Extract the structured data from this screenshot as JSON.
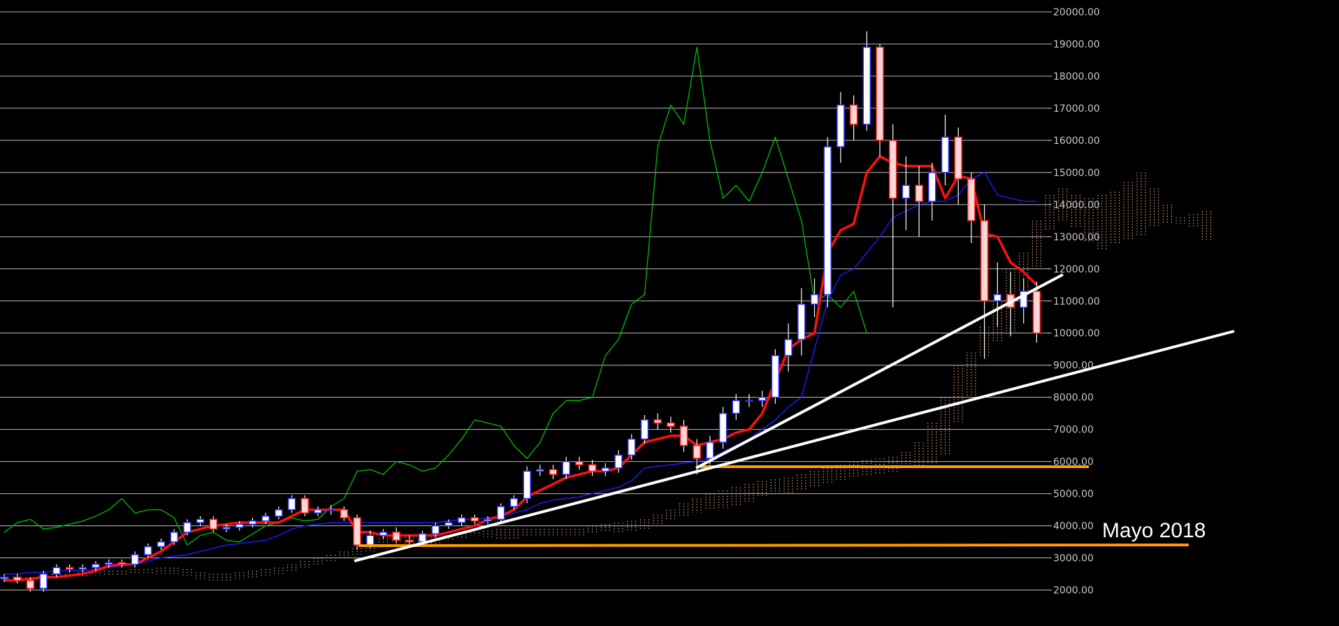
{
  "chart_data": {
    "type": "candlestick",
    "annotation": "Mayo 2018",
    "ylim": [
      880,
      20370
    ],
    "yticks": [
      {
        "value": 2000,
        "label": "2000.00"
      },
      {
        "value": 3000,
        "label": "3000.00"
      },
      {
        "value": 4000,
        "label": "4000.00"
      },
      {
        "value": 5000,
        "label": "5000.00"
      },
      {
        "value": 6000,
        "label": "6000.00"
      },
      {
        "value": 7000,
        "label": "7000.00"
      },
      {
        "value": 8000,
        "label": "8000.00"
      },
      {
        "value": 9000,
        "label": "9000.00"
      },
      {
        "value": 10000,
        "label": "10000.00"
      },
      {
        "value": 11000,
        "label": "11000.00"
      },
      {
        "value": 12000,
        "label": "12000.00"
      },
      {
        "value": 13000,
        "label": "13000.00"
      },
      {
        "value": 14000,
        "label": "14000.00"
      },
      {
        "value": 15000,
        "label": "15000.00"
      },
      {
        "value": 16000,
        "label": "16000.00"
      },
      {
        "value": 17000,
        "label": "17000.00"
      },
      {
        "value": 18000,
        "label": "18000.00"
      },
      {
        "value": 19000,
        "label": "19000.00"
      },
      {
        "value": 20000,
        "label": "20000.00"
      }
    ],
    "grid": true,
    "up_color": "#3030ff",
    "down_color": "#ff2020",
    "open": [
      2350,
      2400,
      2300,
      2050,
      2500,
      2700,
      2650,
      2700,
      2800,
      2850,
      2800,
      3100,
      3350,
      3500,
      3800,
      4100,
      4200,
      3900,
      3950,
      4050,
      4150,
      4300,
      4500,
      4850,
      4400,
      4500,
      4500,
      4250,
      3400,
      3700,
      3800,
      3550,
      3500,
      3750,
      4000,
      4100,
      4250,
      4150,
      4200,
      4600,
      4850,
      5700,
      5750,
      5600,
      6000,
      5900,
      5700,
      5800,
      6200,
      6700,
      7300,
      7200,
      7100,
      6500,
      6100,
      6600,
      7500,
      7900,
      7900,
      8000,
      9300,
      9800,
      10900,
      11200,
      15800,
      17100,
      16500,
      18900,
      16000,
      14200,
      14600,
      14100,
      15000,
      16100,
      14800,
      13500,
      11000,
      11200,
      10800,
      11300
    ],
    "high": [
      2500,
      2500,
      2400,
      2600,
      2800,
      2800,
      2800,
      2900,
      2950,
      2950,
      3200,
      3450,
      3600,
      3900,
      4200,
      4300,
      4300,
      4050,
      4150,
      4250,
      4400,
      4600,
      4950,
      4950,
      4600,
      4650,
      4600,
      4350,
      3850,
      3900,
      3950,
      3700,
      3850,
      4100,
      4200,
      4350,
      4350,
      4300,
      4700,
      4950,
      5850,
      5900,
      5900,
      6150,
      6150,
      6050,
      5950,
      6350,
      6850,
      7450,
      7500,
      7400,
      7300,
      6700,
      6800,
      7700,
      8100,
      8100,
      8200,
      9500,
      10300,
      11400,
      11700,
      16100,
      17500,
      17400,
      19400,
      19000,
      16500,
      15500,
      15200,
      15300,
      16800,
      16400,
      15000,
      14000,
      12200,
      11900,
      11700,
      11600
    ],
    "low": [
      2250,
      2200,
      1950,
      1950,
      2400,
      2550,
      2550,
      2600,
      2700,
      2700,
      2700,
      3000,
      3250,
      3400,
      3700,
      4000,
      3800,
      3800,
      3850,
      3950,
      4050,
      4200,
      4400,
      4300,
      4300,
      4350,
      4150,
      3250,
      3300,
      3600,
      3450,
      3400,
      3400,
      3650,
      3900,
      4000,
      4050,
      4050,
      4100,
      4500,
      4700,
      5550,
      5450,
      5450,
      5750,
      5550,
      5550,
      5650,
      6050,
      6550,
      7000,
      6900,
      6300,
      5600,
      5900,
      6400,
      7300,
      7700,
      7700,
      7800,
      8800,
      9300,
      10500,
      10800,
      15300,
      16000,
      16300,
      15500,
      10800,
      13200,
      13000,
      13500,
      14600,
      14000,
      12800,
      9200,
      10200,
      9900,
      10300,
      9700
    ],
    "close": [
      2400,
      2300,
      2050,
      2500,
      2700,
      2650,
      2700,
      2800,
      2850,
      2800,
      3100,
      3350,
      3500,
      3800,
      4100,
      4200,
      3900,
      3950,
      4050,
      4150,
      4300,
      4500,
      4850,
      4400,
      4500,
      4500,
      4250,
      3400,
      3700,
      3800,
      3550,
      3500,
      3750,
      4000,
      4100,
      4250,
      4150,
      4200,
      4600,
      4850,
      5700,
      5750,
      5600,
      6000,
      5900,
      5700,
      5800,
      6200,
      6700,
      7300,
      7200,
      7100,
      6500,
      6100,
      6600,
      7500,
      7900,
      7900,
      8000,
      9300,
      9800,
      10900,
      11200,
      15800,
      17100,
      16500,
      18900,
      16000,
      14200,
      14600,
      14100,
      15000,
      16100,
      14800,
      13500,
      11000,
      11200,
      10800,
      11300,
      10000
    ],
    "lines": [
      {
        "color": "#00c000",
        "width": 1.3,
        "values": [
          3800,
          4100,
          4200,
          3900,
          3950,
          4050,
          4150,
          4300,
          4500,
          4850,
          4400,
          4500,
          4500,
          4250,
          3400,
          3700,
          3800,
          3550,
          3500,
          3750,
          4000,
          4100,
          4250,
          4150,
          4200,
          4600,
          4850,
          5700,
          5750,
          5600,
          6000,
          5900,
          5700,
          5800,
          6200,
          6700,
          7300,
          7200,
          7100,
          6500,
          6100,
          6600,
          7500,
          7900,
          7900,
          8000,
          9300,
          9800,
          10900,
          11200,
          15800,
          17100,
          16500,
          18900,
          16000,
          14200,
          14600,
          14100,
          15000,
          16100,
          14800,
          13500,
          11000,
          11200,
          10800,
          11300,
          10000,
          null,
          null,
          null,
          null,
          null,
          null,
          null,
          null,
          null,
          null,
          null,
          null,
          null
        ]
      },
      {
        "color": "#1a1aff",
        "width": 1.5,
        "values": [
          2500,
          2500,
          2550,
          2550,
          2600,
          2600,
          2600,
          2650,
          2700,
          2750,
          2800,
          2900,
          3000,
          3050,
          3100,
          3200,
          3300,
          3400,
          3450,
          3500,
          3550,
          3700,
          3900,
          4000,
          4050,
          4100,
          4100,
          4100,
          4100,
          4100,
          4100,
          4100,
          4100,
          4100,
          4150,
          4200,
          4200,
          4250,
          4300,
          4400,
          4500,
          4700,
          4800,
          4850,
          4900,
          5000,
          5100,
          5200,
          5400,
          5800,
          5850,
          5900,
          5950,
          6000,
          6100,
          6300,
          6500,
          6700,
          7000,
          7300,
          7700,
          8000,
          9500,
          11000,
          11800,
          12000,
          12500,
          13000,
          13600,
          13800,
          14000,
          14100,
          14100,
          14300,
          14800,
          15000,
          14300,
          14200,
          14100,
          14100
        ]
      },
      {
        "color": "#ff1010",
        "width": 3.5,
        "values": [
          2300,
          2300,
          2350,
          2400,
          2400,
          2450,
          2500,
          2600,
          2750,
          2800,
          2800,
          3000,
          3200,
          3500,
          3800,
          3900,
          4000,
          4050,
          4100,
          4100,
          4100,
          4100,
          4300,
          4500,
          4500,
          4500,
          4500,
          3800,
          3800,
          3700,
          3700,
          3700,
          3700,
          3700,
          3800,
          3900,
          4000,
          4200,
          4300,
          4500,
          4900,
          5100,
          5300,
          5500,
          5600,
          5700,
          5700,
          5800,
          6200,
          6600,
          6700,
          6800,
          6800,
          6500,
          6600,
          6700,
          6900,
          7000,
          7500,
          8500,
          9500,
          9800,
          10000,
          12500,
          13200,
          13400,
          15000,
          15500,
          15300,
          15200,
          15200,
          15200,
          14200,
          14900,
          14800,
          13100,
          13000,
          12200,
          11900,
          11500
        ]
      }
    ],
    "cloud": {
      "color": "#d9a07a",
      "span_a": [
        2400,
        2400,
        2400,
        2450,
        2500,
        2500,
        2550,
        2550,
        2600,
        2600,
        2650,
        2650,
        2700,
        2700,
        2650,
        2550,
        2500,
        2500,
        2550,
        2600,
        2650,
        2700,
        2800,
        2900,
        3000,
        3100,
        3200,
        3300,
        3400,
        3600,
        3700,
        3650,
        3600,
        3650,
        3700,
        3750,
        3800,
        3850,
        3900,
        3900,
        3900,
        3900,
        3900,
        3900,
        3900,
        4000,
        4050,
        4100,
        4150,
        4200,
        4350,
        4500,
        4700,
        4850,
        5000,
        5100,
        5200,
        5300,
        5400,
        5450,
        5500,
        5600,
        5700,
        5800,
        5900,
        6000,
        6050,
        6100,
        6150,
        6300,
        6600,
        7200,
        8000,
        9000,
        9400,
        10200,
        11000,
        12000,
        12500,
        13500,
        14300,
        14500,
        14300,
        14200,
        14300,
        14400,
        14700,
        15000,
        14500,
        14000,
        13600,
        13700,
        13800
      ],
      "span_b": [
        2350,
        2350,
        2350,
        2350,
        2400,
        2400,
        2400,
        2450,
        2450,
        2450,
        2500,
        2500,
        2500,
        2500,
        2450,
        2350,
        2300,
        2300,
        2350,
        2400,
        2450,
        2500,
        2600,
        2700,
        2800,
        2900,
        3000,
        3100,
        3200,
        3400,
        3500,
        3450,
        3400,
        3450,
        3550,
        3600,
        3700,
        3650,
        3600,
        3600,
        3650,
        3700,
        3700,
        3700,
        3700,
        3750,
        3800,
        3800,
        3850,
        3900,
        4000,
        4150,
        4300,
        4400,
        4500,
        4550,
        4600,
        4750,
        4900,
        4950,
        5000,
        5100,
        5200,
        5300,
        5400,
        5500,
        5550,
        5600,
        5650,
        5800,
        5850,
        5950,
        6200,
        7200,
        8000,
        9300,
        9700,
        10000,
        11300,
        12000,
        13200,
        13500,
        13300,
        12800,
        12600,
        12800,
        12900,
        13000,
        13300,
        13400,
        13400,
        13300,
        12900
      ]
    }
  }
}
